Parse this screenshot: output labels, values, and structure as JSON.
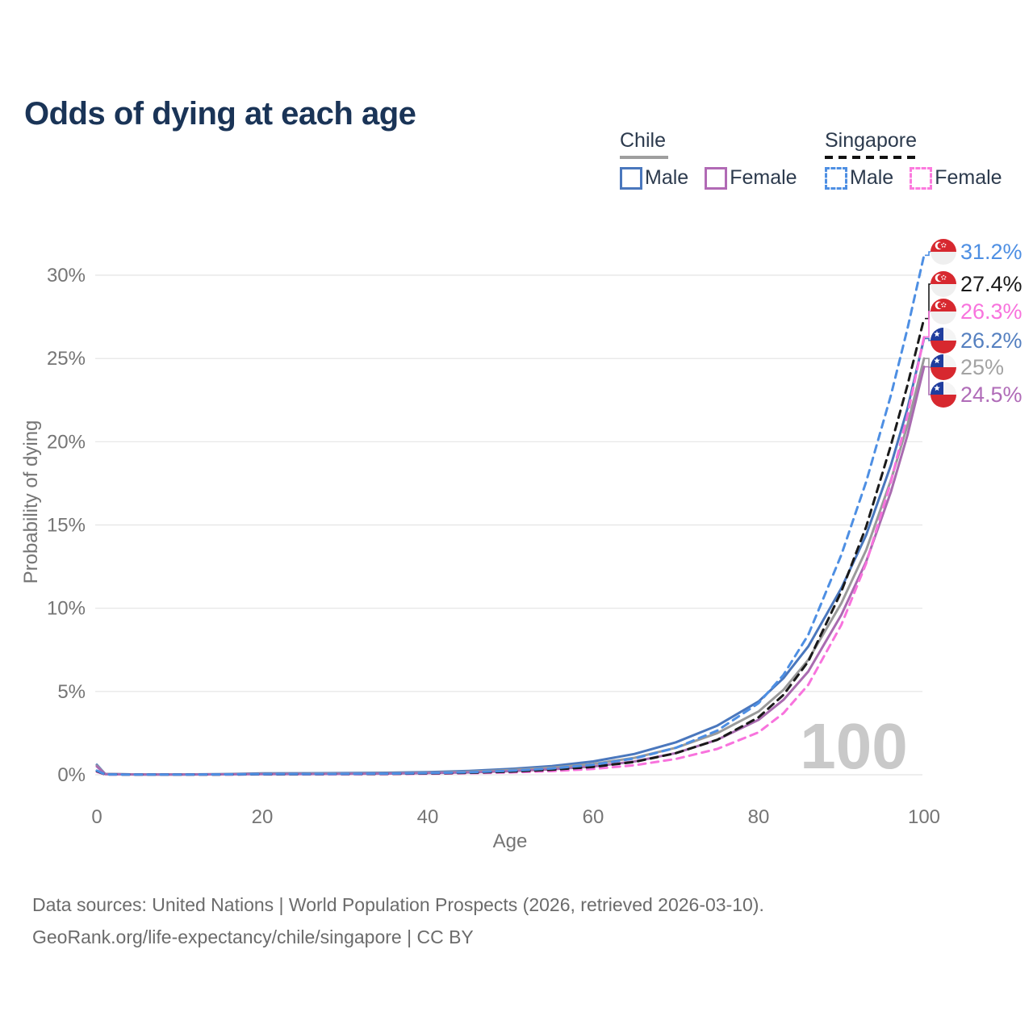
{
  "title": "Odds of dying at each age",
  "legend": {
    "groups": [
      {
        "name": "Chile",
        "line_style": "solid",
        "underline_color": "#9e9e9e",
        "items": [
          {
            "label": "Male",
            "color": "#4a77bd"
          },
          {
            "label": "Female",
            "color": "#b16ab5"
          }
        ]
      },
      {
        "name": "Singapore",
        "line_style": "dashed",
        "underline_color": "#111111",
        "items": [
          {
            "label": "Male",
            "color": "#4e8fe3"
          },
          {
            "label": "Female",
            "color": "#fc7ade"
          }
        ]
      }
    ]
  },
  "chart_data": {
    "type": "line",
    "title": "Odds of dying at each age",
    "xlabel": "Age",
    "ylabel": "Probability of dying",
    "xlim": [
      0,
      100
    ],
    "ylim": [
      0,
      31.5
    ],
    "xticks": [
      0,
      20,
      40,
      60,
      80,
      100
    ],
    "ytick_values": [
      0,
      5,
      10,
      15,
      20,
      25,
      30
    ],
    "ytick_labels": [
      "0%",
      "5%",
      "10%",
      "15%",
      "20%",
      "25%",
      "30%"
    ],
    "grid": "horizontal",
    "legend_position": "top-right",
    "watermark": "100",
    "series": [
      {
        "id": "chile-male",
        "country": "Chile",
        "sex": "Male",
        "color": "#4a77bd",
        "label_color": "#5580c0",
        "dashed": false,
        "flag": "cl",
        "end_label": "26.2%",
        "end_value": 26.2,
        "points": [
          [
            0,
            0.6
          ],
          [
            1,
            0.05
          ],
          [
            5,
            0.02
          ],
          [
            10,
            0.02
          ],
          [
            15,
            0.04
          ],
          [
            20,
            0.08
          ],
          [
            25,
            0.09
          ],
          [
            30,
            0.1
          ],
          [
            35,
            0.12
          ],
          [
            40,
            0.16
          ],
          [
            45,
            0.23
          ],
          [
            50,
            0.35
          ],
          [
            55,
            0.52
          ],
          [
            60,
            0.8
          ],
          [
            65,
            1.25
          ],
          [
            70,
            1.95
          ],
          [
            75,
            2.95
          ],
          [
            80,
            4.4
          ],
          [
            83,
            5.8
          ],
          [
            86,
            7.7
          ],
          [
            90,
            11.2
          ],
          [
            93,
            14.4
          ],
          [
            96,
            18.6
          ],
          [
            98,
            22.0
          ],
          [
            100,
            26.2
          ]
        ]
      },
      {
        "id": "chile-total",
        "country": "Chile",
        "sex": "Both",
        "color": "#9a9a9a",
        "label_color": "#a3a3a3",
        "dashed": false,
        "flag": "cl",
        "end_label": "25%",
        "end_value": 25.0,
        "points": [
          [
            0,
            0.55
          ],
          [
            1,
            0.045
          ],
          [
            5,
            0.018
          ],
          [
            10,
            0.018
          ],
          [
            15,
            0.03
          ],
          [
            20,
            0.06
          ],
          [
            25,
            0.065
          ],
          [
            30,
            0.075
          ],
          [
            35,
            0.09
          ],
          [
            40,
            0.12
          ],
          [
            45,
            0.18
          ],
          [
            50,
            0.28
          ],
          [
            55,
            0.42
          ],
          [
            60,
            0.65
          ],
          [
            65,
            1.02
          ],
          [
            70,
            1.62
          ],
          [
            75,
            2.5
          ],
          [
            80,
            3.8
          ],
          [
            83,
            5.1
          ],
          [
            86,
            6.9
          ],
          [
            90,
            10.3
          ],
          [
            93,
            13.5
          ],
          [
            96,
            17.7
          ],
          [
            98,
            21.0
          ],
          [
            100,
            25.0
          ]
        ]
      },
      {
        "id": "chile-female",
        "country": "Chile",
        "sex": "Female",
        "color": "#a96bb0",
        "label_color": "#b06cb8",
        "dashed": false,
        "flag": "cl",
        "end_label": "24.5%",
        "end_value": 24.5,
        "points": [
          [
            0,
            0.5
          ],
          [
            1,
            0.04
          ],
          [
            5,
            0.015
          ],
          [
            10,
            0.015
          ],
          [
            15,
            0.025
          ],
          [
            20,
            0.04
          ],
          [
            25,
            0.045
          ],
          [
            30,
            0.055
          ],
          [
            35,
            0.07
          ],
          [
            40,
            0.1
          ],
          [
            45,
            0.14
          ],
          [
            50,
            0.22
          ],
          [
            55,
            0.33
          ],
          [
            60,
            0.5
          ],
          [
            65,
            0.8
          ],
          [
            70,
            1.3
          ],
          [
            75,
            2.1
          ],
          [
            80,
            3.3
          ],
          [
            83,
            4.5
          ],
          [
            86,
            6.2
          ],
          [
            90,
            9.6
          ],
          [
            93,
            12.8
          ],
          [
            96,
            17.0
          ],
          [
            98,
            20.4
          ],
          [
            100,
            24.5
          ]
        ]
      },
      {
        "id": "singapore-female",
        "country": "Singapore",
        "sex": "Female",
        "color": "#f873dd",
        "label_color": "#f873dd",
        "dashed": true,
        "flag": "sg",
        "end_label": "26.3%",
        "end_value": 26.3,
        "points": [
          [
            0,
            0.18
          ],
          [
            1,
            0.015
          ],
          [
            5,
            0.008
          ],
          [
            10,
            0.008
          ],
          [
            15,
            0.012
          ],
          [
            20,
            0.02
          ],
          [
            25,
            0.025
          ],
          [
            30,
            0.03
          ],
          [
            35,
            0.04
          ],
          [
            40,
            0.06
          ],
          [
            45,
            0.09
          ],
          [
            50,
            0.14
          ],
          [
            55,
            0.22
          ],
          [
            60,
            0.35
          ],
          [
            65,
            0.57
          ],
          [
            70,
            0.95
          ],
          [
            75,
            1.55
          ],
          [
            80,
            2.55
          ],
          [
            83,
            3.7
          ],
          [
            86,
            5.4
          ],
          [
            90,
            9.0
          ],
          [
            93,
            12.7
          ],
          [
            96,
            17.6
          ],
          [
            98,
            21.6
          ],
          [
            100,
            26.3
          ]
        ]
      },
      {
        "id": "singapore-total",
        "country": "Singapore",
        "sex": "Both",
        "color": "#1a1a1a",
        "label_color": "#1a1a1a",
        "dashed": true,
        "flag": "sg",
        "end_label": "27.4%",
        "end_value": 27.4,
        "points": [
          [
            0,
            0.22
          ],
          [
            1,
            0.018
          ],
          [
            5,
            0.009
          ],
          [
            10,
            0.009
          ],
          [
            15,
            0.016
          ],
          [
            20,
            0.03
          ],
          [
            25,
            0.035
          ],
          [
            30,
            0.045
          ],
          [
            35,
            0.055
          ],
          [
            40,
            0.08
          ],
          [
            45,
            0.12
          ],
          [
            50,
            0.19
          ],
          [
            55,
            0.3
          ],
          [
            60,
            0.47
          ],
          [
            65,
            0.77
          ],
          [
            70,
            1.3
          ],
          [
            75,
            2.1
          ],
          [
            80,
            3.45
          ],
          [
            83,
            4.8
          ],
          [
            86,
            6.8
          ],
          [
            90,
            11.0
          ],
          [
            93,
            14.9
          ],
          [
            96,
            19.8
          ],
          [
            98,
            23.4
          ],
          [
            100,
            27.4
          ]
        ]
      },
      {
        "id": "singapore-male",
        "country": "Singapore",
        "sex": "Male",
        "color": "#4e8fe3",
        "label_color": "#4e8fe3",
        "dashed": true,
        "flag": "sg",
        "end_label": "31.2%",
        "end_value": 31.2,
        "points": [
          [
            0,
            0.25
          ],
          [
            1,
            0.02
          ],
          [
            5,
            0.01
          ],
          [
            10,
            0.01
          ],
          [
            15,
            0.02
          ],
          [
            20,
            0.04
          ],
          [
            25,
            0.045
          ],
          [
            30,
            0.055
          ],
          [
            35,
            0.07
          ],
          [
            40,
            0.1
          ],
          [
            45,
            0.15
          ],
          [
            50,
            0.24
          ],
          [
            55,
            0.38
          ],
          [
            60,
            0.6
          ],
          [
            65,
            0.98
          ],
          [
            70,
            1.62
          ],
          [
            75,
            2.65
          ],
          [
            80,
            4.3
          ],
          [
            83,
            6.0
          ],
          [
            86,
            8.4
          ],
          [
            90,
            13.2
          ],
          [
            93,
            17.6
          ],
          [
            96,
            22.8
          ],
          [
            98,
            26.8
          ],
          [
            100,
            31.2
          ]
        ]
      }
    ]
  },
  "footer": {
    "line1": "Data sources: United Nations | World Population Prospects (2026, retrieved 2026-03-10).",
    "line2": "GeoRank.org/life-expectancy/chile/singapore | CC BY"
  }
}
